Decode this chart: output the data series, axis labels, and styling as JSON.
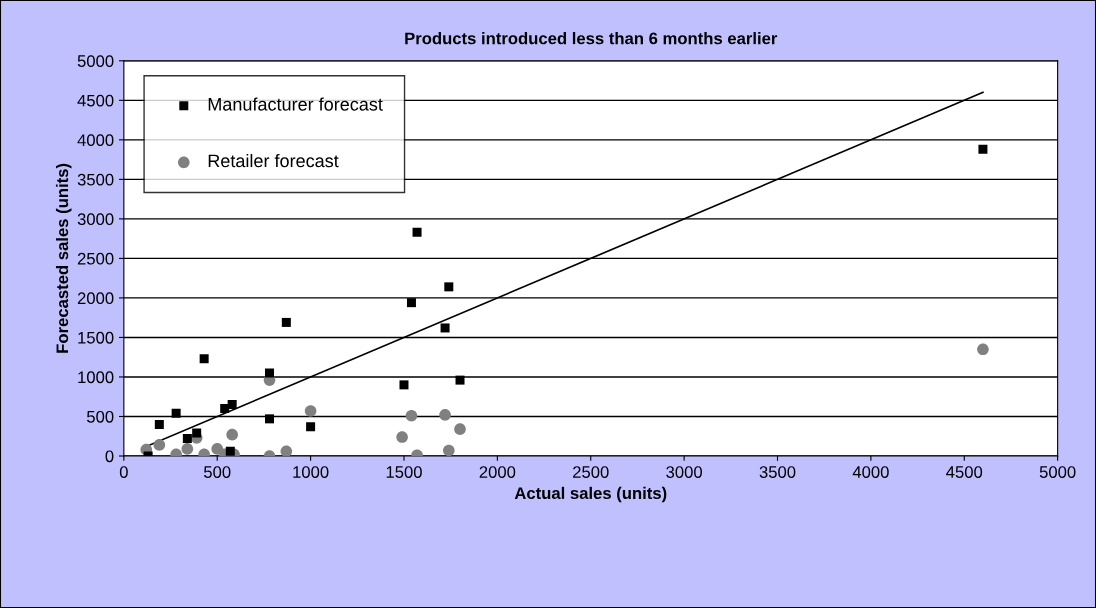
{
  "chart_data": {
    "type": "scatter",
    "title": "Products introduced less than 6 months earlier",
    "xlabel": "Actual sales (units)",
    "ylabel": "Forecasted sales (units)",
    "xlim": [
      0,
      5000
    ],
    "xticks": [
      0,
      500,
      1000,
      1500,
      2000,
      2500,
      3000,
      3500,
      4000,
      4500,
      5000
    ],
    "ylim": [
      0,
      5000
    ],
    "yticks": [
      0,
      500,
      1000,
      1500,
      2000,
      2500,
      3000,
      3500,
      4000,
      4500,
      5000
    ],
    "grid": "y",
    "legend": "top left",
    "series": [
      {
        "name": "Manufacturer forecast",
        "color": "#000000",
        "marker": "square",
        "x": [
          130,
          190,
          280,
          340,
          390,
          430,
          540,
          580,
          570,
          780,
          780,
          870,
          1000,
          1500,
          1540,
          1570,
          1720,
          1740,
          1800,
          4600
        ],
        "values": [
          0,
          400,
          540,
          220,
          290,
          1230,
          600,
          650,
          60,
          1050,
          470,
          1690,
          370,
          900,
          1940,
          2830,
          1620,
          2140,
          960,
          3880
        ]
      },
      {
        "name": "Retailer forecast",
        "color": "#808080",
        "marker": "circle",
        "x": [
          120,
          190,
          280,
          340,
          390,
          430,
          500,
          540,
          580,
          590,
          780,
          780,
          870,
          1000,
          1490,
          1540,
          1570,
          1720,
          1740,
          1800,
          4600
        ],
        "values": [
          80,
          140,
          20,
          90,
          230,
          20,
          90,
          20,
          270,
          20,
          960,
          0,
          60,
          570,
          240,
          510,
          10,
          520,
          70,
          340,
          1350
        ]
      },
      {
        "type": "line",
        "color": "#000000",
        "marker": "none",
        "line_style": "solid",
        "x": [
          130,
          4600
        ],
        "values": [
          130,
          4600
        ]
      }
    ]
  }
}
